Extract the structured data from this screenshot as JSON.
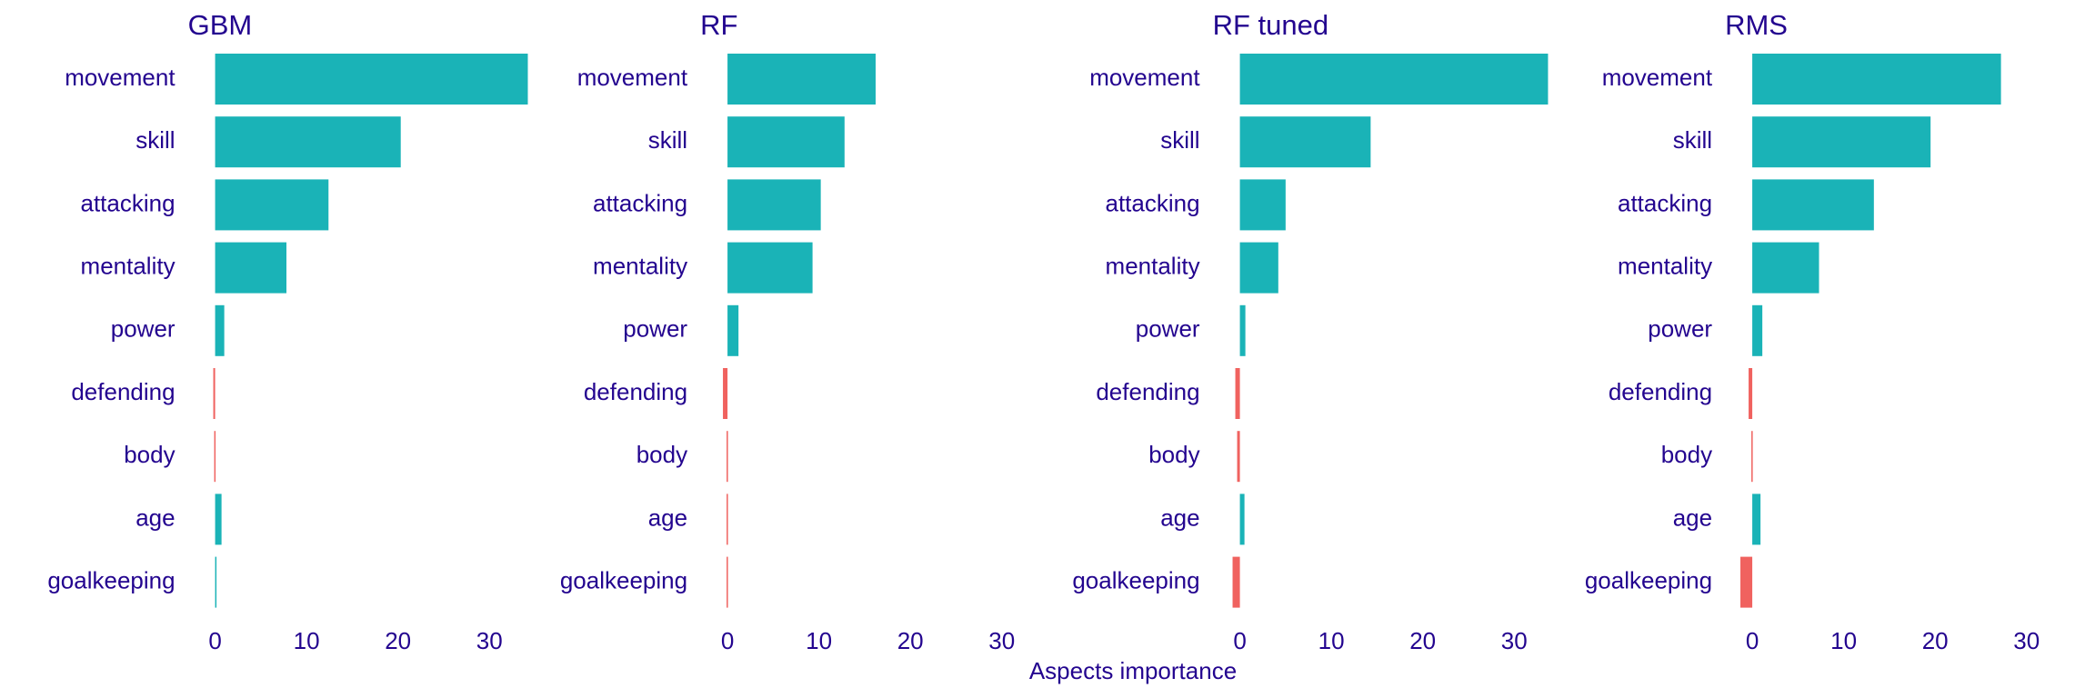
{
  "chart_data": [
    {
      "type": "bar",
      "title": "GBM",
      "categories": [
        "movement",
        "skill",
        "attacking",
        "mentality",
        "power",
        "defending",
        "body",
        "age",
        "goalkeeping"
      ],
      "values": [
        34.2,
        20.3,
        12.4,
        7.8,
        1.0,
        -0.2,
        -0.1,
        0.7,
        0.1
      ],
      "positive_color": "#1ab3b7",
      "negative_color": "#f0625f",
      "xlim": [
        -1.5,
        34.5
      ],
      "xticks": [
        0,
        10,
        20,
        30
      ]
    },
    {
      "type": "bar",
      "title": "RF",
      "categories": [
        "movement",
        "skill",
        "attacking",
        "mentality",
        "power",
        "defending",
        "body",
        "age",
        "goalkeeping"
      ],
      "values": [
        16.2,
        12.8,
        10.2,
        9.3,
        1.2,
        -0.5,
        -0.1,
        -0.1,
        -0.1
      ],
      "positive_color": "#1ab3b7",
      "negative_color": "#f0625f",
      "xlim": [
        -1.5,
        34.5
      ],
      "xticks": [
        0,
        10,
        20,
        30
      ]
    },
    {
      "type": "bar",
      "title": "RF tuned",
      "categories": [
        "movement",
        "skill",
        "attacking",
        "mentality",
        "power",
        "defending",
        "body",
        "age",
        "goalkeeping"
      ],
      "values": [
        33.7,
        14.3,
        5.0,
        4.2,
        0.6,
        -0.5,
        -0.3,
        0.5,
        -0.8
      ],
      "positive_color": "#1ab3b7",
      "negative_color": "#f0625f",
      "xlim": [
        -1.5,
        34.5
      ],
      "xticks": [
        0,
        10,
        20,
        30
      ]
    },
    {
      "type": "bar",
      "title": "RMS",
      "categories": [
        "movement",
        "skill",
        "attacking",
        "mentality",
        "power",
        "defending",
        "body",
        "age",
        "goalkeeping"
      ],
      "values": [
        27.2,
        19.5,
        13.3,
        7.3,
        1.1,
        -0.4,
        -0.1,
        0.9,
        -1.3
      ],
      "positive_color": "#1ab3b7",
      "negative_color": "#f0625f",
      "xlim": [
        -1.5,
        34.5
      ],
      "xticks": [
        0,
        10,
        20,
        30
      ]
    }
  ],
  "xlabel": "Aspects importance"
}
